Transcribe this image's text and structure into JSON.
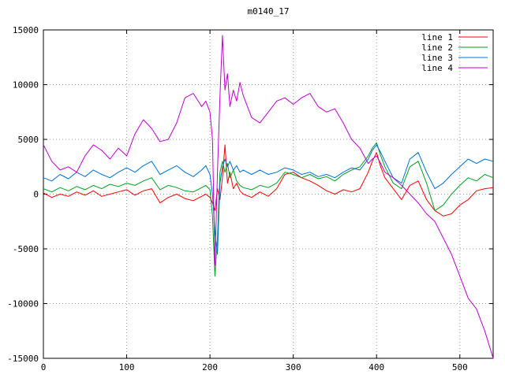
{
  "chart_data": {
    "type": "line",
    "title": "m0140_17",
    "xlabel": "",
    "ylabel": "",
    "xlim": [
      0,
      540
    ],
    "ylim": [
      -15000,
      15000
    ],
    "xticks": [
      0,
      100,
      200,
      300,
      400,
      500
    ],
    "yticks": [
      -15000,
      -10000,
      -5000,
      0,
      5000,
      10000,
      15000
    ],
    "grid": true,
    "grid_color": "#9a9a9a",
    "border_color": "#000000",
    "background": "#ffffff",
    "legend_position": "top-right",
    "x": [
      0,
      10,
      20,
      30,
      40,
      50,
      60,
      70,
      80,
      90,
      100,
      110,
      120,
      130,
      140,
      150,
      160,
      170,
      180,
      190,
      195,
      200,
      203,
      206,
      209,
      212,
      215,
      218,
      221,
      224,
      228,
      232,
      236,
      240,
      250,
      260,
      270,
      280,
      290,
      300,
      310,
      320,
      330,
      340,
      350,
      360,
      370,
      380,
      390,
      395,
      400,
      405,
      410,
      420,
      430,
      440,
      450,
      460,
      470,
      480,
      490,
      500,
      510,
      520,
      530,
      540
    ],
    "series": [
      {
        "name": "line 1",
        "color": "#ff0000",
        "values": [
          100,
          -300,
          0,
          -200,
          200,
          -100,
          300,
          -200,
          0,
          200,
          400,
          -100,
          300,
          500,
          -800,
          -300,
          0,
          -400,
          -600,
          -200,
          0,
          -300,
          -800,
          -1500,
          500,
          -500,
          1500,
          4500,
          1000,
          2000,
          500,
          1000,
          300,
          0,
          -300,
          200,
          -200,
          500,
          1800,
          2000,
          1500,
          1200,
          800,
          300,
          0,
          400,
          200,
          500,
          2000,
          3000,
          3800,
          2500,
          1500,
          500,
          -500,
          800,
          1200,
          -500,
          -1500,
          -2000,
          -1800,
          -1000,
          -500,
          300,
          500,
          600
        ]
      },
      {
        "name": "line 2",
        "color": "#00a020",
        "values": [
          500,
          200,
          600,
          300,
          700,
          400,
          800,
          500,
          900,
          700,
          1000,
          800,
          1200,
          1500,
          400,
          800,
          600,
          300,
          200,
          600,
          800,
          400,
          -2000,
          -7500,
          -4000,
          2000,
          3000,
          2000,
          2800,
          1500,
          2200,
          1200,
          800,
          600,
          400,
          800,
          600,
          1000,
          2000,
          1800,
          1500,
          1800,
          1400,
          1600,
          1200,
          1800,
          2200,
          2500,
          3500,
          4200,
          4700,
          3500,
          2500,
          1000,
          500,
          2500,
          3000,
          1000,
          -1500,
          -1000,
          0,
          800,
          1500,
          1200,
          1800,
          1500
        ]
      },
      {
        "name": "line 3",
        "color": "#0070d0",
        "values": [
          1500,
          1200,
          1800,
          1400,
          2000,
          1600,
          2200,
          1800,
          1500,
          2000,
          2400,
          2000,
          2600,
          3000,
          1800,
          2200,
          2600,
          2000,
          1600,
          2200,
          2600,
          1800,
          0,
          -3500,
          -5500,
          1000,
          2500,
          3200,
          2500,
          3000,
          2200,
          2600,
          2000,
          2200,
          1800,
          2200,
          1800,
          2000,
          2400,
          2200,
          1800,
          2000,
          1600,
          1800,
          1500,
          2000,
          2400,
          2200,
          3200,
          4000,
          4500,
          3800,
          3000,
          1500,
          1000,
          3200,
          3800,
          2000,
          500,
          1000,
          1800,
          2500,
          3200,
          2800,
          3200,
          3000
        ]
      },
      {
        "name": "line 4",
        "color": "#c000d0",
        "values": [
          4500,
          3000,
          2200,
          2500,
          2000,
          3500,
          4500,
          4000,
          3200,
          4200,
          3500,
          5500,
          6800,
          6000,
          4800,
          5000,
          6500,
          8800,
          9200,
          8000,
          8500,
          7500,
          5000,
          -6500,
          2000,
          9000,
          14500,
          9500,
          11000,
          8000,
          9500,
          8500,
          10200,
          9000,
          7000,
          6500,
          7500,
          8500,
          8800,
          8200,
          8800,
          9200,
          8000,
          7500,
          7800,
          6500,
          5000,
          4200,
          2800,
          3200,
          3500,
          2800,
          2000,
          1500,
          800,
          0,
          -800,
          -1800,
          -2500,
          -4000,
          -5500,
          -7500,
          -9500,
          -10500,
          -12500,
          -15000
        ]
      }
    ]
  }
}
